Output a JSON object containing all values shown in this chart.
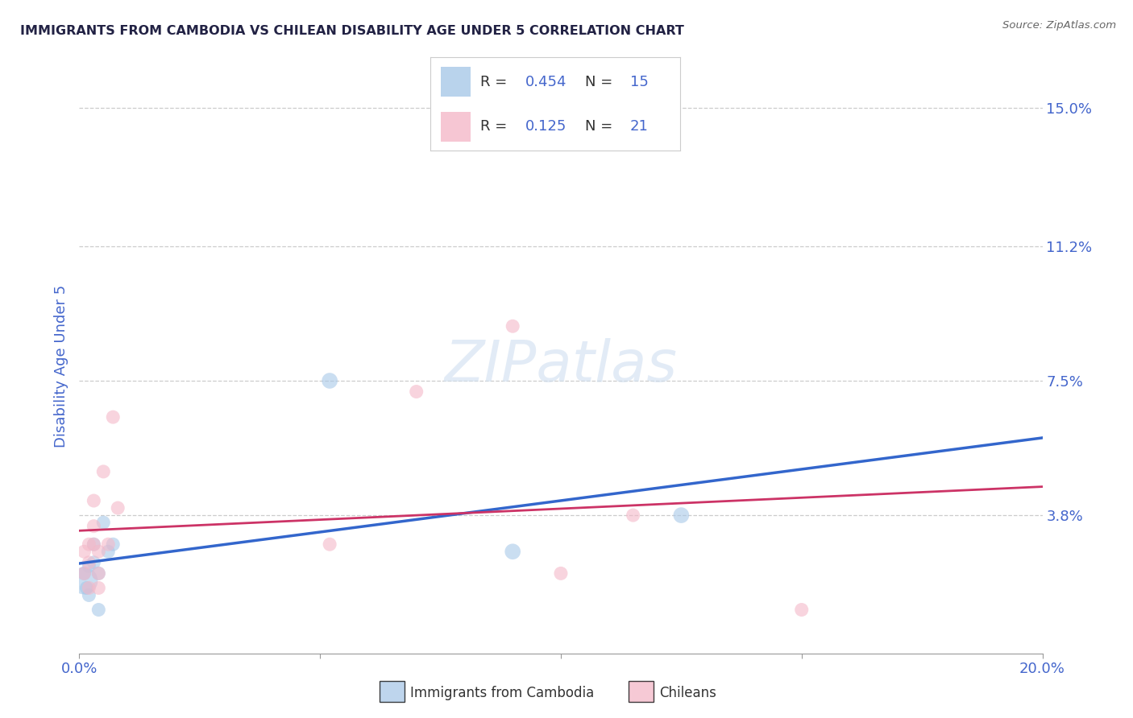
{
  "title": "IMMIGRANTS FROM CAMBODIA VS CHILEAN DISABILITY AGE UNDER 5 CORRELATION CHART",
  "source": "Source: ZipAtlas.com",
  "ylabel_label": "Disability Age Under 5",
  "xlim": [
    0.0,
    0.2
  ],
  "ylim": [
    0.0,
    0.158
  ],
  "ytick_labels": [
    "3.8%",
    "7.5%",
    "11.2%",
    "15.0%"
  ],
  "ytick_values": [
    0.038,
    0.075,
    0.112,
    0.15
  ],
  "background_color": "#ffffff",
  "blue_R": 0.454,
  "blue_N": 15,
  "pink_R": 0.125,
  "pink_N": 21,
  "blue_scatter_color": "#a8c8e8",
  "pink_scatter_color": "#f4b8c8",
  "blue_line_color": "#3366cc",
  "pink_line_color": "#cc3366",
  "title_color": "#222244",
  "tick_color": "#4466cc",
  "source_color": "#666666",
  "legend_label_blue": "Immigrants from Cambodia",
  "legend_label_pink": "Chileans",
  "blue_x": [
    0.001,
    0.001,
    0.0015,
    0.002,
    0.002,
    0.003,
    0.003,
    0.004,
    0.004,
    0.005,
    0.006,
    0.007,
    0.052,
    0.09,
    0.125
  ],
  "blue_y": [
    0.02,
    0.022,
    0.018,
    0.024,
    0.016,
    0.025,
    0.03,
    0.022,
    0.012,
    0.036,
    0.028,
    0.03,
    0.075,
    0.028,
    0.038
  ],
  "blue_size": [
    600,
    150,
    150,
    150,
    150,
    150,
    150,
    150,
    150,
    150,
    150,
    150,
    200,
    200,
    200
  ],
  "pink_x": [
    0.001,
    0.001,
    0.002,
    0.002,
    0.002,
    0.003,
    0.003,
    0.003,
    0.004,
    0.004,
    0.004,
    0.005,
    0.006,
    0.007,
    0.008,
    0.052,
    0.07,
    0.09,
    0.1,
    0.115,
    0.15
  ],
  "pink_y": [
    0.028,
    0.022,
    0.03,
    0.025,
    0.018,
    0.035,
    0.042,
    0.03,
    0.028,
    0.022,
    0.018,
    0.05,
    0.03,
    0.065,
    0.04,
    0.03,
    0.072,
    0.09,
    0.022,
    0.038,
    0.012
  ],
  "pink_size": [
    150,
    150,
    150,
    150,
    150,
    150,
    150,
    150,
    150,
    150,
    150,
    150,
    150,
    150,
    150,
    150,
    150,
    150,
    150,
    150,
    150
  ]
}
